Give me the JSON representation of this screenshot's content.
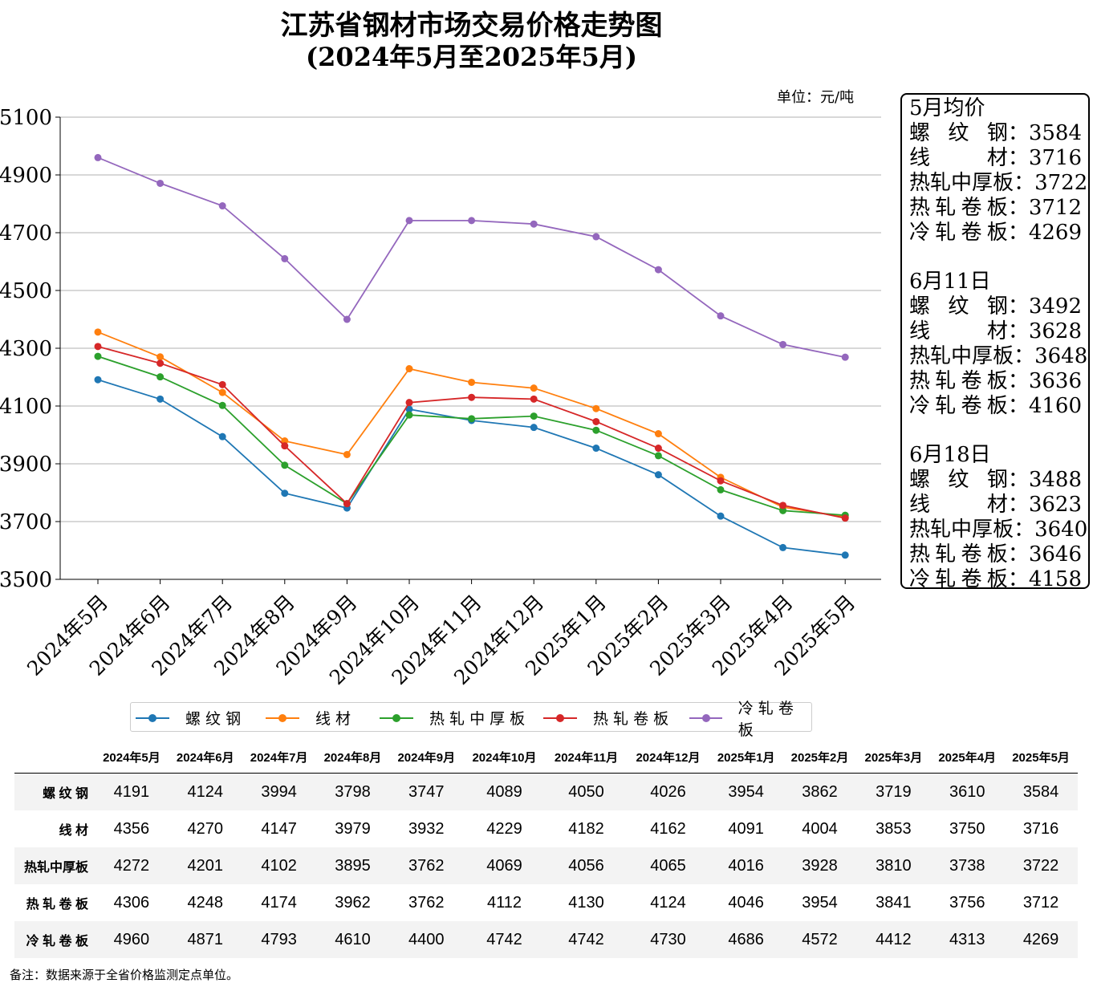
{
  "title_line1": "江苏省钢材市场交易价格走势图",
  "title_line2": "(2024年5月至2025年5月)",
  "unit": "单位：元/吨",
  "chart_data": {
    "type": "line",
    "categories": [
      "2024年5月",
      "2024年6月",
      "2024年7月",
      "2024年8月",
      "2024年9月",
      "2024年10月",
      "2024年11月",
      "2024年12月",
      "2025年1月",
      "2025年2月",
      "2025年3月",
      "2025年4月",
      "2025年5月"
    ],
    "series": [
      {
        "name": "螺纹钢",
        "color": "#1f77b4",
        "values": [
          4191,
          4124,
          3994,
          3798,
          3747,
          4089,
          4050,
          4026,
          3954,
          3862,
          3719,
          3610,
          3584
        ]
      },
      {
        "name": "线材",
        "color": "#ff7f0e",
        "values": [
          4356,
          4270,
          4147,
          3979,
          3932,
          4229,
          4182,
          4162,
          4091,
          4004,
          3853,
          3750,
          3716
        ]
      },
      {
        "name": "热轧中厚板",
        "color": "#2ca02c",
        "values": [
          4272,
          4201,
          4102,
          3895,
          3762,
          4069,
          4056,
          4065,
          4016,
          3928,
          3810,
          3738,
          3722
        ]
      },
      {
        "name": "热轧卷板",
        "color": "#d62728",
        "values": [
          4306,
          4248,
          4174,
          3962,
          3762,
          4112,
          4130,
          4124,
          4046,
          3954,
          3841,
          3756,
          3712
        ]
      },
      {
        "name": "冷轧卷板",
        "color": "#9467bd",
        "values": [
          4960,
          4871,
          4793,
          4610,
          4400,
          4742,
          4742,
          4730,
          4686,
          4572,
          4412,
          4313,
          4269
        ]
      }
    ],
    "ylim": [
      3500,
      5100
    ],
    "yticks": [
      3500,
      3700,
      3900,
      4100,
      4300,
      4500,
      4700,
      4900,
      5100
    ],
    "grid": "horizontal",
    "legend_position": "bottom"
  },
  "sidebox": {
    "groups": [
      {
        "heading": "5月均价",
        "items": [
          {
            "label": "螺纹钢",
            "value": "3584"
          },
          {
            "label": "线材",
            "value": "3716"
          },
          {
            "label": "热轧中厚板",
            "value": "3722"
          },
          {
            "label": "热轧卷板",
            "value": "3712"
          },
          {
            "label": "冷轧卷板",
            "value": "4269"
          }
        ]
      },
      {
        "heading": "6月11日",
        "items": [
          {
            "label": "螺纹钢",
            "value": "3492"
          },
          {
            "label": "线材",
            "value": "3628"
          },
          {
            "label": "热轧中厚板",
            "value": "3648"
          },
          {
            "label": "热轧卷板",
            "value": "3636"
          },
          {
            "label": "冷轧卷板",
            "value": "4160"
          }
        ]
      },
      {
        "heading": "6月18日",
        "items": [
          {
            "label": "螺纹钢",
            "value": "3488"
          },
          {
            "label": "线材",
            "value": "3623"
          },
          {
            "label": "热轧中厚板",
            "value": "3640"
          },
          {
            "label": "热轧卷板",
            "value": "3646"
          },
          {
            "label": "冷轧卷板",
            "value": "4158"
          }
        ]
      }
    ]
  },
  "table": {
    "row_labels": [
      "螺 纹 钢",
      "线 材",
      "热轧中厚板",
      "热 轧 卷 板",
      "冷 轧 卷 板"
    ]
  },
  "note": "备注：数据来源于全省价格监测定点单位。"
}
